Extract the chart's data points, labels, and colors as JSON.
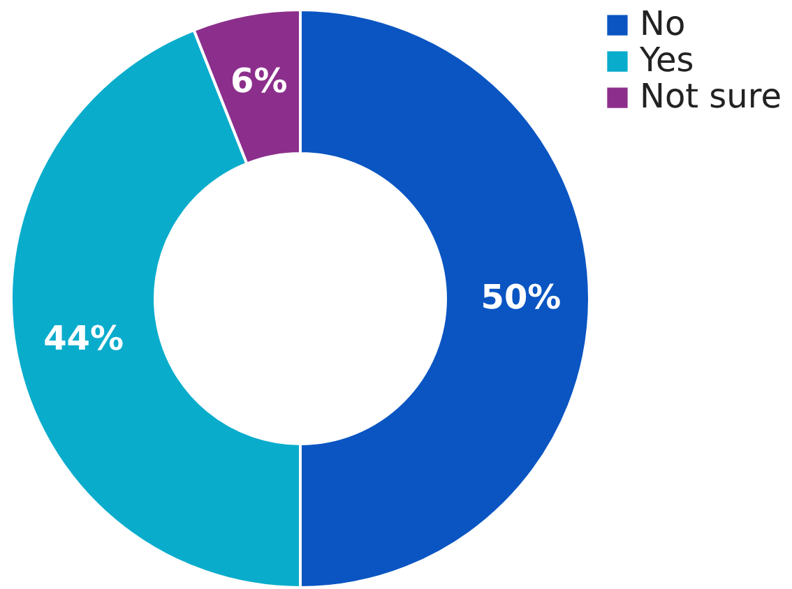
{
  "chart_data": {
    "type": "donut",
    "categories": [
      "No",
      "Yes",
      "Not sure"
    ],
    "values": [
      50,
      44,
      6
    ],
    "colors": [
      "#0a55c2",
      "#0aaccc",
      "#8c2f8c"
    ],
    "value_labels": [
      "50%",
      "44%",
      "6%"
    ],
    "legend": "right"
  }
}
